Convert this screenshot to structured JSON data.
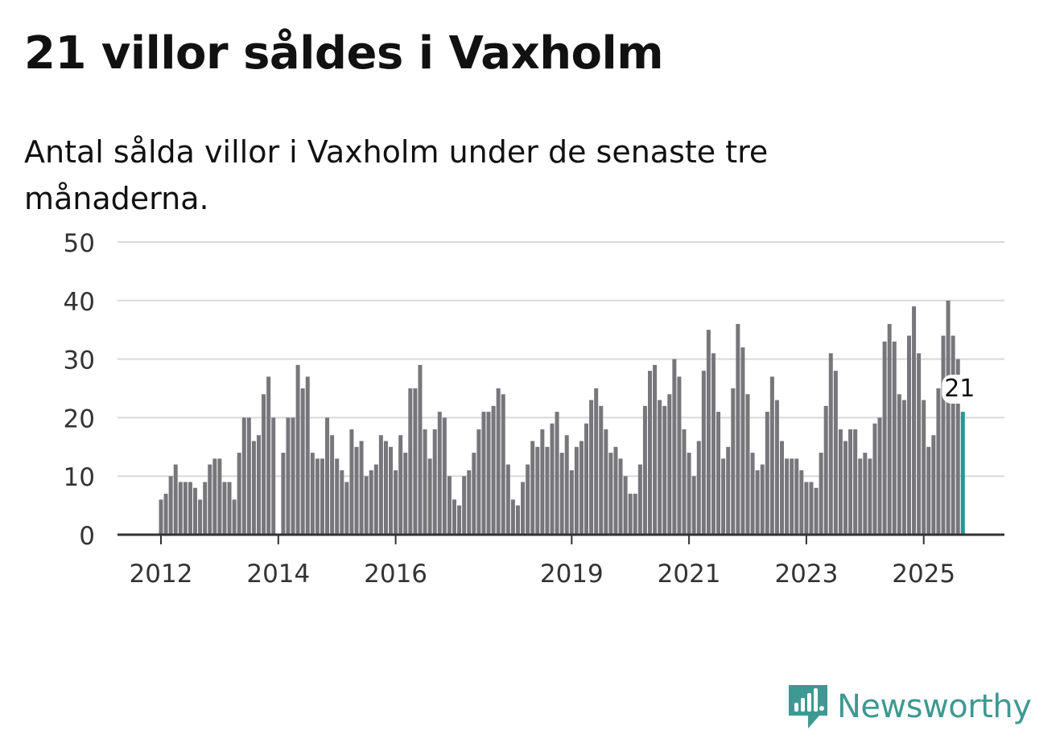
{
  "header": {
    "title": "21 villor såldes i Vaxholm",
    "subtitle": "Antal sålda villor i Vaxholm under de senaste tre månaderna."
  },
  "brand": {
    "name": "Newsworthy",
    "color": "#3e9992"
  },
  "chart_data": {
    "type": "bar",
    "title": "21 villor såldes i Vaxholm",
    "subtitle": "Antal sålda villor i Vaxholm under de senaste tre månaderna.",
    "xlabel": "",
    "ylabel": "",
    "ylim": [
      0,
      50
    ],
    "yticks": [
      0,
      10,
      20,
      30,
      40,
      50
    ],
    "xtick_labels": [
      "2012",
      "2014",
      "2016",
      "2019",
      "2021",
      "2023",
      "2025"
    ],
    "grid": true,
    "bar_color": "#77767a",
    "highlight_color": "#1f9b93",
    "highlight_label": "21",
    "start": "2012-01",
    "end": "2025-08",
    "values": [
      6,
      7,
      10,
      12,
      9,
      9,
      9,
      8,
      6,
      9,
      12,
      13,
      13,
      9,
      9,
      6,
      14,
      20,
      20,
      16,
      17,
      24,
      27,
      20,
      0,
      14,
      20,
      20,
      29,
      25,
      27,
      14,
      13,
      13,
      20,
      17,
      13,
      11,
      9,
      18,
      15,
      16,
      10,
      11,
      12,
      17,
      16,
      15,
      11,
      17,
      14,
      25,
      25,
      29,
      18,
      13,
      18,
      21,
      20,
      10,
      6,
      5,
      10,
      11,
      14,
      18,
      21,
      21,
      22,
      25,
      24,
      12,
      6,
      5,
      9,
      12,
      16,
      15,
      18,
      15,
      19,
      21,
      14,
      17,
      11,
      15,
      16,
      19,
      23,
      25,
      22,
      18,
      14,
      15,
      13,
      10,
      7,
      7,
      12,
      22,
      28,
      29,
      23,
      22,
      24,
      30,
      27,
      18,
      14,
      10,
      16,
      28,
      35,
      31,
      21,
      13,
      15,
      25,
      36,
      32,
      24,
      14,
      11,
      12,
      21,
      27,
      23,
      16,
      13,
      13,
      13,
      11,
      9,
      9,
      8,
      14,
      22,
      31,
      28,
      18,
      16,
      18,
      18,
      13,
      14,
      13,
      19,
      20,
      33,
      36,
      33,
      24,
      23,
      34,
      39,
      31,
      23,
      15,
      17,
      25,
      34,
      40,
      34,
      30,
      21
    ]
  }
}
